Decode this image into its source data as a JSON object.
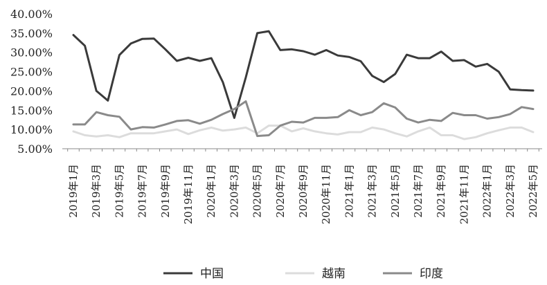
{
  "chart_data": {
    "type": "line",
    "title": "",
    "xlabel": "",
    "ylabel": "",
    "ylim": [
      0.05,
      0.4
    ],
    "yticks": [
      "5.00%",
      "10.00%",
      "15.00%",
      "20.00%",
      "25.00%",
      "30.00%",
      "35.00%",
      "40.00%"
    ],
    "x": [
      "2019年1月",
      "2019年2月",
      "2019年3月",
      "2019年4月",
      "2019年5月",
      "2019年6月",
      "2019年7月",
      "2019年8月",
      "2019年9月",
      "2019年10月",
      "2019年11月",
      "2019年12月",
      "2020年1月",
      "2020年2月",
      "2020年3月",
      "2020年4月",
      "2020年5月",
      "2020年6月",
      "2020年7月",
      "2020年8月",
      "2020年9月",
      "2020年10月",
      "2020年11月",
      "2020年12月",
      "2021年1月",
      "2021年2月",
      "2021年3月",
      "2021年4月",
      "2021年5月",
      "2021年6月",
      "2021年7月",
      "2021年8月",
      "2021年9月",
      "2021年10月",
      "2021年11月",
      "2021年12月",
      "2022年1月",
      "2022年2月",
      "2022年3月",
      "2022年4月",
      "2022年5月"
    ],
    "xtick_labels": [
      "2019年1月",
      "2019年3月",
      "2019年5月",
      "2019年7月",
      "2019年9月",
      "2019年11月",
      "2020年1月",
      "2020年3月",
      "2020年5月",
      "2020年7月",
      "2020年9月",
      "2020年11月",
      "2021年1月",
      "2021年3月",
      "2021年5月",
      "2021年7月",
      "2021年9月",
      "2021年11月",
      "2022年1月",
      "2022年3月",
      "2022年5月"
    ],
    "legend_position": "bottom",
    "grid": false,
    "series": [
      {
        "name": "中国",
        "color": "#3a3a3a",
        "values": [
          0.345,
          0.317,
          0.2,
          0.175,
          0.293,
          0.323,
          0.335,
          0.336,
          0.308,
          0.278,
          0.286,
          0.278,
          0.285,
          0.223,
          0.13,
          0.235,
          0.35,
          0.355,
          0.306,
          0.308,
          0.303,
          0.294,
          0.306,
          0.292,
          0.288,
          0.277,
          0.239,
          0.223,
          0.244,
          0.294,
          0.285,
          0.285,
          0.302,
          0.278,
          0.28,
          0.263,
          0.27,
          0.25,
          0.204,
          0.202,
          0.201
        ]
      },
      {
        "name": "越南",
        "color": "#dcdcdc",
        "values": [
          0.095,
          0.085,
          0.082,
          0.085,
          0.08,
          0.09,
          0.09,
          0.09,
          0.095,
          0.1,
          0.088,
          0.098,
          0.105,
          0.097,
          0.1,
          0.105,
          0.09,
          0.11,
          0.11,
          0.095,
          0.103,
          0.095,
          0.09,
          0.087,
          0.093,
          0.093,
          0.105,
          0.1,
          0.09,
          0.082,
          0.095,
          0.105,
          0.085,
          0.085,
          0.075,
          0.08,
          0.09,
          0.098,
          0.105,
          0.105,
          0.093
        ]
      },
      {
        "name": "印度",
        "color": "#8a8a8a",
        "values": [
          0.113,
          0.113,
          0.145,
          0.137,
          0.133,
          0.1,
          0.106,
          0.105,
          0.113,
          0.122,
          0.124,
          0.115,
          0.125,
          0.14,
          0.153,
          0.173,
          0.083,
          0.085,
          0.11,
          0.12,
          0.118,
          0.13,
          0.13,
          0.132,
          0.15,
          0.137,
          0.145,
          0.168,
          0.157,
          0.128,
          0.118,
          0.125,
          0.122,
          0.143,
          0.137,
          0.137,
          0.128,
          0.132,
          0.14,
          0.158,
          0.153
        ]
      }
    ]
  }
}
